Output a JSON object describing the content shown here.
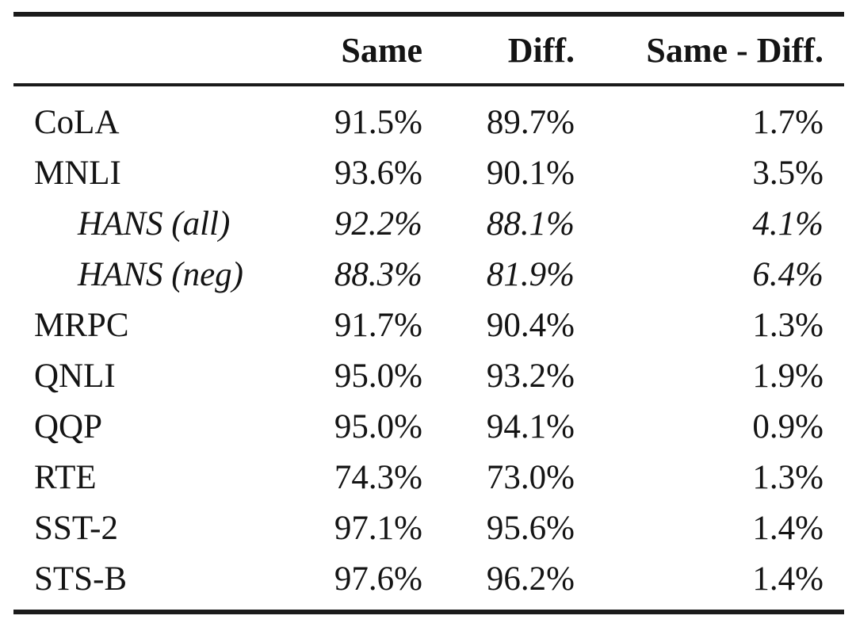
{
  "table": {
    "header": {
      "label": "",
      "same": "Same",
      "diff": "Diff.",
      "delta": "Same - Diff."
    },
    "rows": [
      {
        "label": "CoLA",
        "same": "91.5%",
        "diff": "89.7%",
        "delta": "1.7%"
      },
      {
        "label": "MNLI",
        "same": "93.6%",
        "diff": "90.1%",
        "delta": "3.5%"
      },
      {
        "label": "HANS (all)",
        "same": "92.2%",
        "diff": "88.1%",
        "delta": "4.1%"
      },
      {
        "label": "HANS (neg)",
        "same": "88.3%",
        "diff": "81.9%",
        "delta": "6.4%"
      },
      {
        "label": "MRPC",
        "same": "91.7%",
        "diff": "90.4%",
        "delta": "1.3%"
      },
      {
        "label": "QNLI",
        "same": "95.0%",
        "diff": "93.2%",
        "delta": "1.9%"
      },
      {
        "label": "QQP",
        "same": "95.0%",
        "diff": "94.1%",
        "delta": "0.9%"
      },
      {
        "label": "RTE",
        "same": "74.3%",
        "diff": "73.0%",
        "delta": "1.3%"
      },
      {
        "label": "SST-2",
        "same": "97.1%",
        "diff": "95.6%",
        "delta": "1.4%"
      },
      {
        "label": "STS-B",
        "same": "97.6%",
        "diff": "96.2%",
        "delta": "1.4%"
      }
    ],
    "colors": {
      "text": "#141414",
      "rule": "#1b1b1b",
      "background": "#ffffff"
    }
  }
}
